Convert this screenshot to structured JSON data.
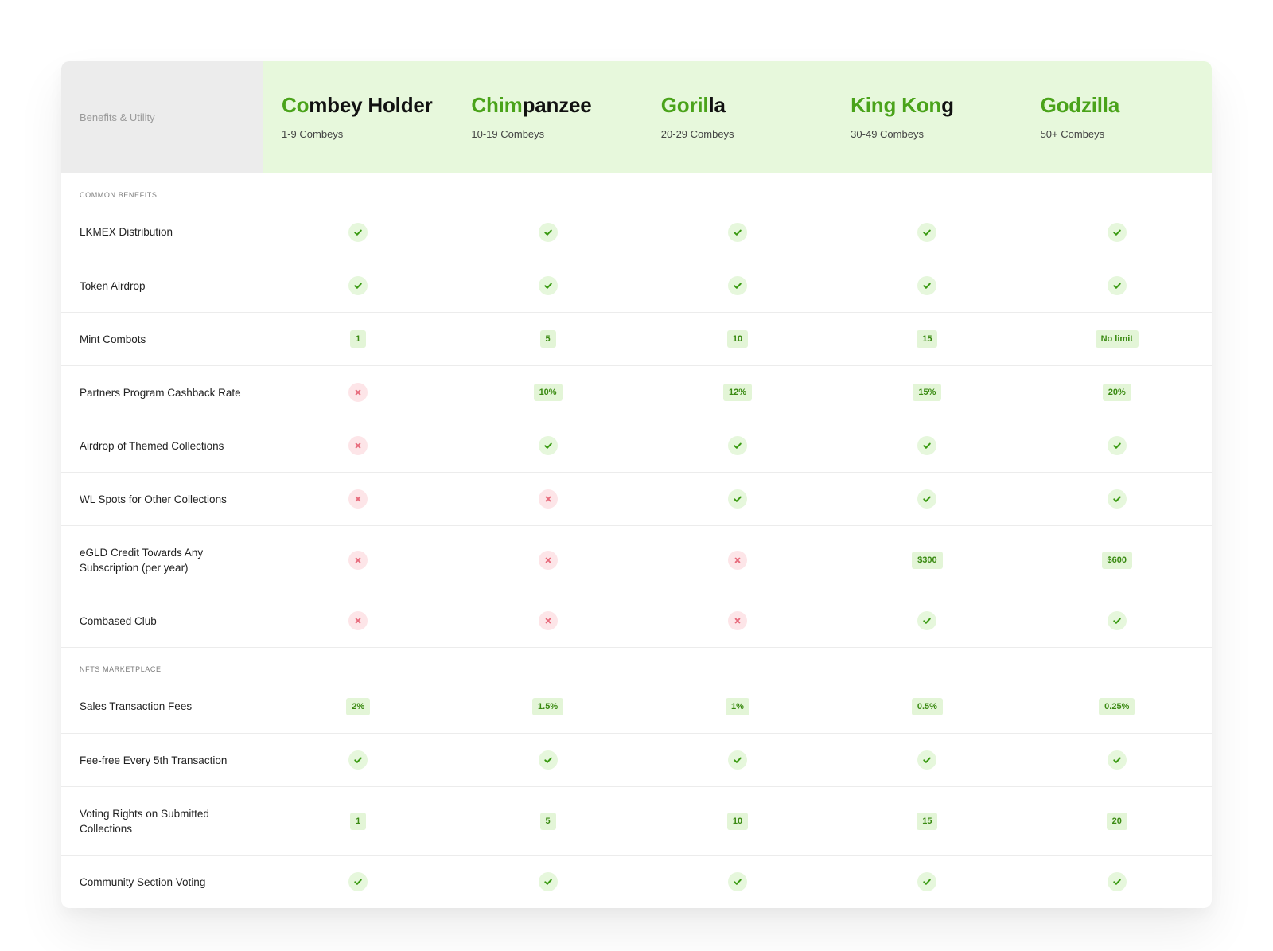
{
  "header": {
    "label": "Benefits & Utility",
    "tiers": [
      {
        "name_accent": "Co",
        "name_rest": "mbey Holder",
        "range": "1-9 Combeys"
      },
      {
        "name_accent": "Chim",
        "name_rest": "panzee",
        "range": "10-19 Combeys"
      },
      {
        "name_accent": "Goril",
        "name_rest": "la",
        "range": "20-29 Combeys"
      },
      {
        "name_accent": "King Kon",
        "name_rest": "g",
        "range": "30-49 Combeys"
      },
      {
        "name_accent": "Godzilla",
        "name_rest": "",
        "range": "50+ Combeys"
      }
    ]
  },
  "colors": {
    "accent": "#4aa31a",
    "header_bg": "#e7f8dc",
    "label_bg": "#ececec",
    "yes_bg": "#e6f7dc",
    "yes_icon": "#3a9a12",
    "no_bg": "#fde5e8",
    "no_icon": "#e76a7b",
    "badge_bg": "#e3f5d7",
    "badge_text": "#3a8a12"
  },
  "sections": [
    {
      "title": "COMMON BENEFITS",
      "rows": [
        {
          "label": "LKMEX Distribution",
          "values": [
            "check",
            "check",
            "check",
            "check",
            "check"
          ]
        },
        {
          "label": "Token Airdrop",
          "values": [
            "check",
            "check",
            "check",
            "check",
            "check"
          ]
        },
        {
          "label": "Mint Combots",
          "values": [
            "1",
            "5",
            "10",
            "15",
            "No limit"
          ]
        },
        {
          "label": "Partners Program Cashback Rate",
          "values": [
            "cross",
            "10%",
            "12%",
            "15%",
            "20%"
          ]
        },
        {
          "label": "Airdrop of Themed Collections",
          "values": [
            "cross",
            "check",
            "check",
            "check",
            "check"
          ]
        },
        {
          "label": "WL Spots for Other Collections",
          "values": [
            "cross",
            "cross",
            "check",
            "check",
            "check"
          ]
        },
        {
          "label": "eGLD Credit Towards Any Subscription (per year)",
          "values": [
            "cross",
            "cross",
            "cross",
            "$300",
            "$600"
          ]
        },
        {
          "label": "Combased Club",
          "values": [
            "cross",
            "cross",
            "cross",
            "check",
            "check"
          ]
        }
      ]
    },
    {
      "title": "NFTS MARKETPLACE",
      "rows": [
        {
          "label": "Sales Transaction Fees",
          "values": [
            "2%",
            "1.5%",
            "1%",
            "0.5%",
            "0.25%"
          ]
        },
        {
          "label": "Fee-free Every 5th Transaction",
          "values": [
            "check",
            "check",
            "check",
            "check",
            "check"
          ]
        },
        {
          "label": "Voting Rights on Submitted Collections",
          "values": [
            "1",
            "5",
            "10",
            "15",
            "20"
          ]
        },
        {
          "label": "Community Section Voting",
          "values": [
            "check",
            "check",
            "check",
            "check",
            "check"
          ]
        }
      ]
    }
  ]
}
